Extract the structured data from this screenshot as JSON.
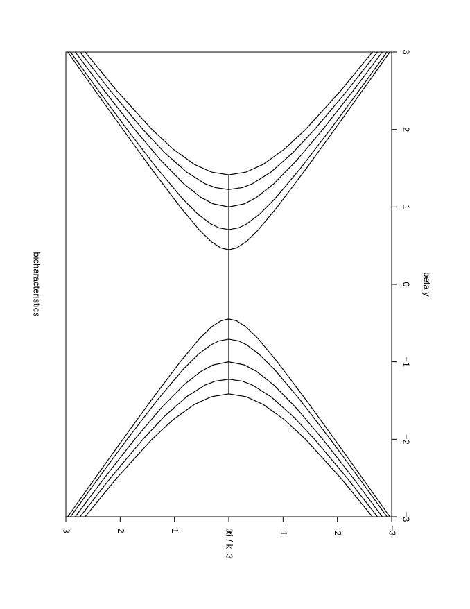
{
  "chart_data": {
    "type": "line",
    "title": "bicharacteristics",
    "xlabel": "beta y",
    "ylabel": "xi / k_3",
    "xlim": [
      -3,
      3
    ],
    "ylim": [
      -3,
      3
    ],
    "xticks": [
      {
        "value": -3,
        "label": "−3"
      },
      {
        "value": -2,
        "label": "−2"
      },
      {
        "value": -1,
        "label": "−1"
      },
      0,
      1,
      2,
      3
    ],
    "yticks": [
      {
        "value": -3,
        "label": "−3"
      },
      {
        "value": -2,
        "label": "−2"
      },
      {
        "value": -1,
        "label": "−1"
      },
      0,
      1,
      2,
      3
    ],
    "color": "#000000",
    "series": [
      {
        "x": [
          3,
          2.5,
          2,
          1.5,
          1,
          0.7,
          0.55,
          0.47,
          0.447,
          0.47,
          0.55,
          0.7,
          1,
          1.5,
          2,
          2.5,
          3
        ],
        "values": [
          -2.966,
          -2.46,
          -1.949,
          -1.432,
          -0.894,
          -0.539,
          -0.32,
          -0.145,
          0,
          0.145,
          0.32,
          0.539,
          0.894,
          1.432,
          1.949,
          2.46,
          2.966
        ]
      },
      {
        "x": [
          -3,
          -2.5,
          -2,
          -1.5,
          -1,
          -0.7,
          -0.55,
          -0.47,
          -0.447,
          -0.47,
          -0.55,
          -0.7,
          -1,
          -1.5,
          -2,
          -2.5,
          -3
        ],
        "values": [
          -2.966,
          -2.46,
          -1.949,
          -1.432,
          -0.894,
          -0.539,
          -0.32,
          -0.145,
          0,
          0.145,
          0.32,
          0.539,
          0.894,
          1.432,
          1.949,
          2.46,
          2.966
        ]
      },
      {
        "x": [
          3,
          2.5,
          2,
          1.5,
          1.1,
          0.9,
          0.78,
          0.73,
          0.707,
          0.73,
          0.78,
          0.9,
          1.1,
          1.5,
          2,
          2.5,
          3
        ],
        "values": [
          -2.915,
          -2.398,
          -1.871,
          -1.323,
          -0.843,
          -0.557,
          -0.329,
          -0.181,
          0,
          0.181,
          0.329,
          0.557,
          0.843,
          1.323,
          1.871,
          2.398,
          2.915
        ]
      },
      {
        "x": [
          -3,
          -2.5,
          -2,
          -1.5,
          -1.1,
          -0.9,
          -0.78,
          -0.73,
          -0.707,
          -0.73,
          -0.78,
          -0.9,
          -1.1,
          -1.5,
          -2,
          -2.5,
          -3
        ],
        "values": [
          -2.915,
          -2.398,
          -1.871,
          -1.323,
          -0.843,
          -0.557,
          -0.329,
          -0.181,
          0,
          0.181,
          0.329,
          0.557,
          0.843,
          1.323,
          1.871,
          2.398,
          2.915
        ]
      },
      {
        "x": [
          3,
          2.5,
          2,
          1.6,
          1.3,
          1.12,
          1.04,
          1,
          1.04,
          1.12,
          1.3,
          1.6,
          2,
          2.5,
          3
        ],
        "values": [
          -2.828,
          -2.291,
          -1.732,
          -1.249,
          -0.831,
          -0.504,
          -0.286,
          0,
          0.286,
          0.504,
          0.831,
          1.249,
          1.732,
          2.291,
          2.828
        ]
      },
      {
        "x": [
          -3,
          -2.5,
          -2,
          -1.6,
          -1.3,
          -1.12,
          -1.04,
          -1,
          -1.04,
          -1.12,
          -1.3,
          -1.6,
          -2,
          -2.5,
          -3
        ],
        "values": [
          -2.828,
          -2.291,
          -1.732,
          -1.249,
          -0.831,
          -0.504,
          -0.286,
          0,
          0.286,
          0.504,
          0.831,
          1.249,
          1.732,
          2.291,
          2.828
        ]
      },
      {
        "x": [
          3,
          2.5,
          2,
          1.7,
          1.45,
          1.3,
          1.25,
          1.225,
          1.25,
          1.3,
          1.45,
          1.7,
          2,
          2.5,
          3
        ],
        "values": [
          -2.739,
          -2.179,
          -1.581,
          -1.179,
          -0.776,
          -0.436,
          -0.25,
          0,
          0.25,
          0.436,
          0.776,
          1.179,
          1.581,
          2.179,
          2.739
        ]
      },
      {
        "x": [
          -3,
          -2.5,
          -2,
          -1.7,
          -1.45,
          -1.3,
          -1.25,
          -1.225,
          -1.25,
          -1.3,
          -1.45,
          -1.7,
          -2,
          -2.5,
          -3
        ],
        "values": [
          -2.739,
          -2.179,
          -1.581,
          -1.179,
          -0.776,
          -0.436,
          -0.25,
          0,
          0.25,
          0.436,
          0.776,
          1.179,
          1.581,
          2.179,
          2.739
        ]
      },
      {
        "x": [
          3,
          2.5,
          2,
          1.75,
          1.55,
          1.45,
          1.414,
          1.45,
          1.55,
          1.75,
          2,
          2.5,
          3
        ],
        "values": [
          -2.646,
          -2.062,
          -1.414,
          -1.031,
          -0.634,
          -0.32,
          0,
          0.32,
          0.634,
          1.031,
          1.414,
          2.062,
          2.646
        ]
      },
      {
        "x": [
          -3,
          -2.5,
          -2,
          -1.75,
          -1.55,
          -1.45,
          -1.414,
          -1.45,
          -1.55,
          -1.75,
          -2,
          -2.5,
          -3
        ],
        "values": [
          -2.646,
          -2.062,
          -1.414,
          -1.031,
          -0.634,
          -0.32,
          0,
          0.32,
          0.634,
          1.031,
          1.414,
          2.062,
          2.646
        ]
      },
      {
        "x": [
          -1.414,
          1.414
        ],
        "values": [
          0,
          0
        ]
      }
    ]
  }
}
